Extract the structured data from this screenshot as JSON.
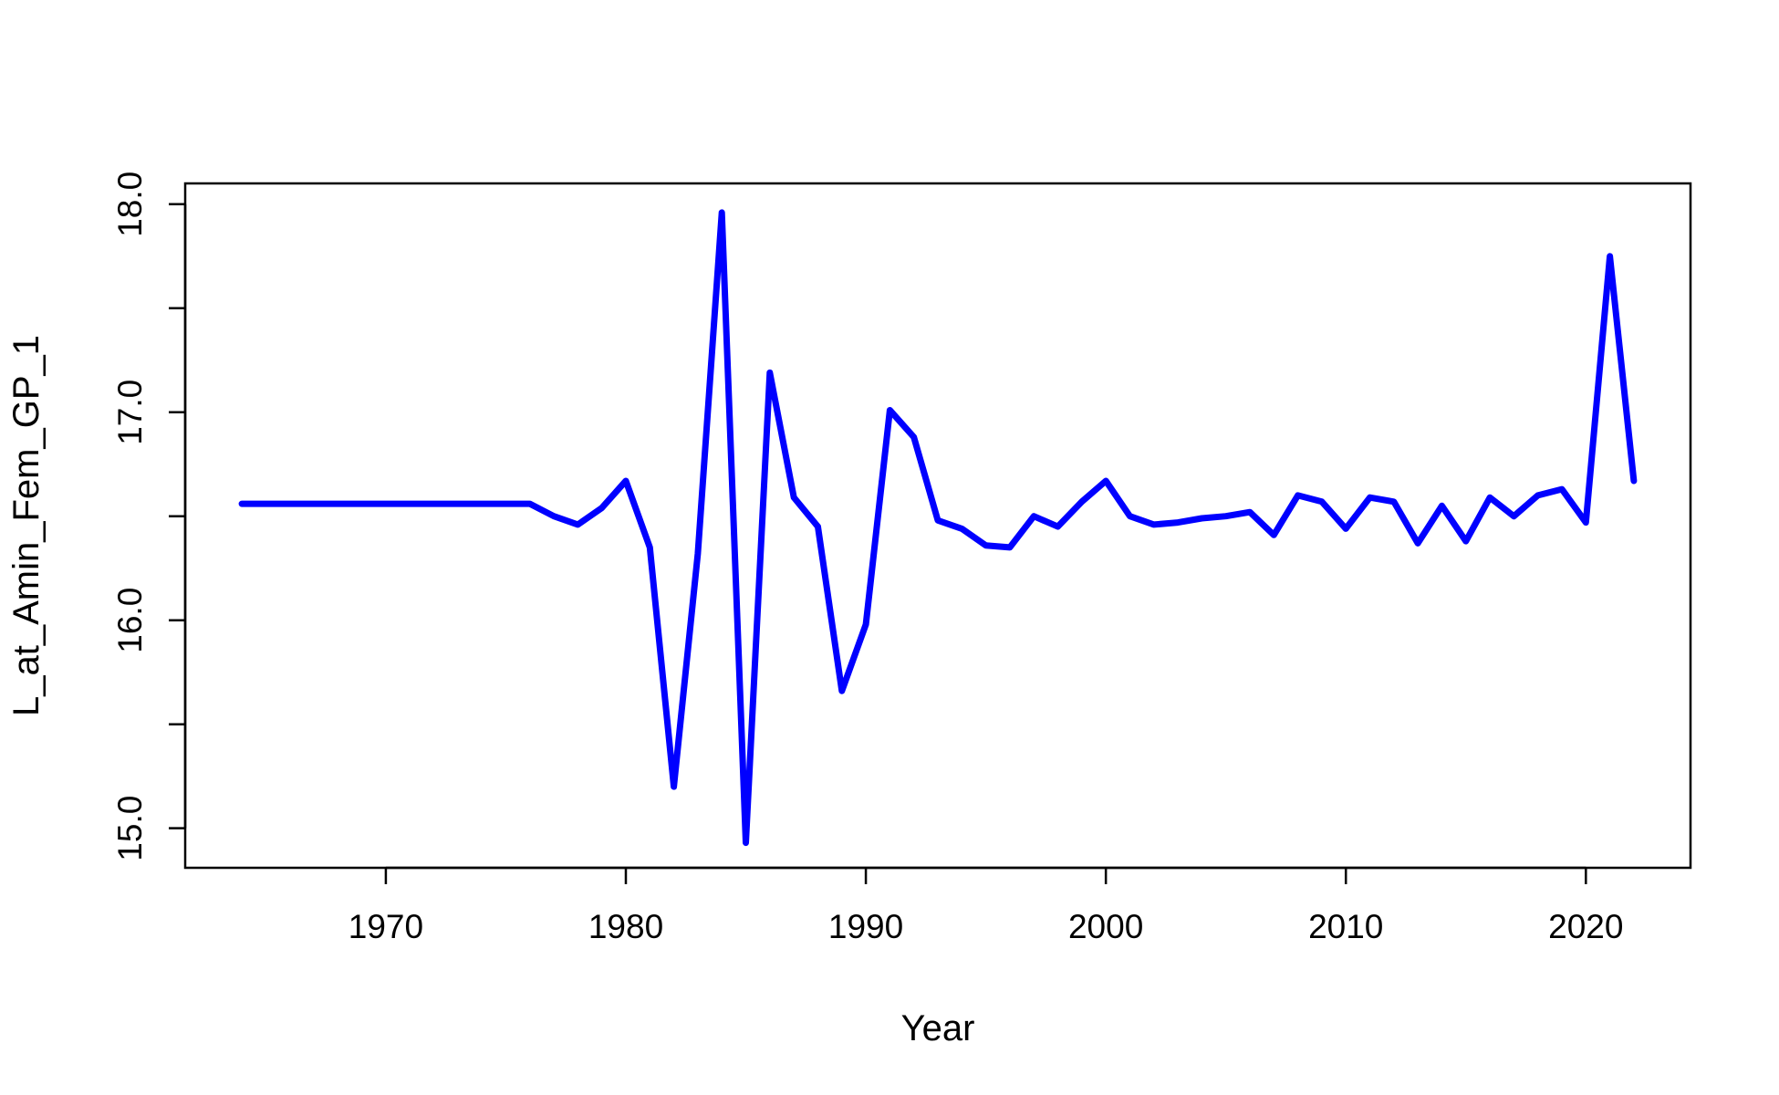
{
  "chart_data": {
    "type": "line",
    "title": "",
    "xlabel": "Year",
    "ylabel": "L_at_Amin_Fem_GP_1",
    "xlim": [
      1961.64,
      2024.36
    ],
    "ylim": [
      14.81,
      18.1
    ],
    "x_ticks": [
      1970,
      1980,
      1990,
      2000,
      2010,
      2020
    ],
    "y_ticks": [
      15.0,
      15.5,
      16.0,
      16.5,
      17.0,
      17.5,
      18.0
    ],
    "y_tick_labels": [
      {
        "value": 15.0,
        "label": "15.0"
      },
      {
        "value": 16.0,
        "label": "16.0"
      },
      {
        "value": 17.0,
        "label": "17.0"
      },
      {
        "value": 18.0,
        "label": "18.0"
      }
    ],
    "grid": false,
    "series": [
      {
        "color": "#0000ff",
        "x": [
          1964,
          1965,
          1966,
          1967,
          1968,
          1969,
          1970,
          1971,
          1972,
          1973,
          1974,
          1975,
          1976,
          1977,
          1978,
          1979,
          1980,
          1981,
          1982,
          1983,
          1984,
          1985,
          1986,
          1987,
          1988,
          1989,
          1990,
          1991,
          1992,
          1993,
          1994,
          1995,
          1996,
          1997,
          1998,
          1999,
          2000,
          2001,
          2002,
          2003,
          2004,
          2005,
          2006,
          2007,
          2008,
          2009,
          2010,
          2011,
          2012,
          2013,
          2014,
          2015,
          2016,
          2017,
          2018,
          2019,
          2020,
          2021,
          2022
        ],
        "y": [
          16.56,
          16.56,
          16.56,
          16.56,
          16.56,
          16.56,
          16.56,
          16.56,
          16.56,
          16.56,
          16.56,
          16.56,
          16.56,
          16.5,
          16.46,
          16.54,
          16.67,
          16.35,
          15.2,
          16.32,
          17.96,
          14.93,
          17.19,
          16.59,
          16.45,
          15.66,
          15.98,
          17.01,
          16.88,
          16.48,
          16.44,
          16.36,
          16.35,
          16.5,
          16.45,
          16.57,
          16.67,
          16.5,
          16.46,
          16.47,
          16.49,
          16.5,
          16.52,
          16.41,
          16.6,
          16.57,
          16.44,
          16.59,
          16.57,
          16.37,
          16.55,
          16.38,
          16.59,
          16.5,
          16.6,
          16.63,
          16.47,
          17.75,
          16.67
        ]
      }
    ]
  }
}
